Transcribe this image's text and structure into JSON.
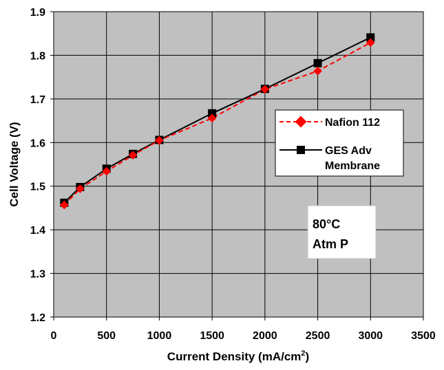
{
  "chart_data": {
    "type": "line",
    "title": "",
    "xlabel": "Current Density (mA/cm",
    "xlabel_superscript": "2",
    "xlabel_suffix": ")",
    "ylabel": "Cell Voltage (V)",
    "xlim": [
      0,
      3500
    ],
    "ylim": [
      1.2,
      1.9
    ],
    "x_ticks": [
      "0",
      "500",
      "1000",
      "1500",
      "2000",
      "2500",
      "3000",
      "3500"
    ],
    "y_ticks": [
      "1.2",
      "1.3",
      "1.4",
      "1.5",
      "1.6",
      "1.7",
      "1.8",
      "1.9"
    ],
    "grid": true,
    "plot_background": "#c0c0c0",
    "legend_position": "right",
    "series": [
      {
        "name": "Nafion 112",
        "color": "#ff0000",
        "line_style": "dashed",
        "marker": "diamond",
        "x": [
          100,
          250,
          500,
          750,
          1000,
          1500,
          2000,
          2500,
          3000
        ],
        "y": [
          1.457,
          1.494,
          1.534,
          1.571,
          1.605,
          1.656,
          1.722,
          1.764,
          1.829
        ]
      },
      {
        "name_lines": [
          "GES Adv",
          "Membrane"
        ],
        "color": "#000000",
        "line_style": "solid",
        "marker": "square",
        "x": [
          100,
          250,
          500,
          750,
          1000,
          1500,
          2000,
          2500,
          3000
        ],
        "y": [
          1.462,
          1.498,
          1.54,
          1.574,
          1.606,
          1.667,
          1.723,
          1.782,
          1.841
        ]
      }
    ],
    "annotation_lines": [
      "80°C",
      "Atm P"
    ]
  }
}
